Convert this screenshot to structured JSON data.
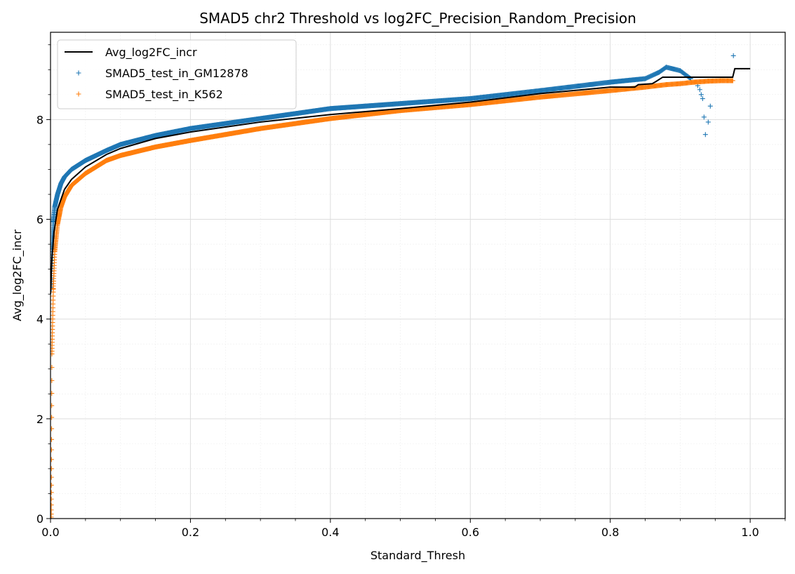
{
  "chart_data": {
    "type": "scatter",
    "title": "SMAD5 chr2 Threshold vs log2FC_Precision_Random_Precision",
    "xlabel": "Standard_Thresh",
    "ylabel": "Avg_log2FC_incr",
    "xlim": [
      0,
      1.05
    ],
    "ylim": [
      0,
      9.75
    ],
    "x_ticks": [
      0.0,
      0.2,
      0.4,
      0.6,
      0.8,
      1.0
    ],
    "x_tick_labels": [
      "0.0",
      "0.2",
      "0.4",
      "0.6",
      "0.8",
      "1.0"
    ],
    "y_ticks": [
      0,
      2,
      4,
      6,
      8
    ],
    "y_tick_labels": [
      "0",
      "2",
      "4",
      "6",
      "8"
    ],
    "grid": true,
    "minor_grid": true,
    "legend_position": "top-left",
    "series": [
      {
        "name": "Avg_log2FC_incr",
        "kind": "line",
        "color": "#000000",
        "x": [
          0.0,
          0.002,
          0.005,
          0.01,
          0.02,
          0.03,
          0.05,
          0.08,
          0.1,
          0.15,
          0.2,
          0.3,
          0.4,
          0.5,
          0.6,
          0.7,
          0.8,
          0.835,
          0.84,
          0.86,
          0.865,
          0.875,
          0.975,
          0.978,
          1.0
        ],
        "y": [
          4.5,
          5.2,
          5.75,
          6.2,
          6.6,
          6.8,
          7.05,
          7.3,
          7.42,
          7.62,
          7.75,
          7.95,
          8.1,
          8.22,
          8.35,
          8.52,
          8.65,
          8.65,
          8.7,
          8.72,
          8.76,
          8.85,
          8.85,
          9.02,
          9.02
        ]
      },
      {
        "name": "SMAD5_test_in_GM12878",
        "kind": "scatter",
        "marker": "+",
        "color": "#1f77b4",
        "x": [
          0.001,
          0.002,
          0.004,
          0.006,
          0.01,
          0.015,
          0.02,
          0.03,
          0.05,
          0.08,
          0.1,
          0.15,
          0.2,
          0.3,
          0.4,
          0.5,
          0.6,
          0.7,
          0.8,
          0.85,
          0.87,
          0.88,
          0.9,
          0.915,
          0.925,
          0.928,
          0.93,
          0.932,
          0.934,
          0.936,
          0.94,
          0.943,
          0.976
        ],
        "y": [
          4.6,
          5.4,
          5.95,
          6.25,
          6.5,
          6.72,
          6.85,
          7.0,
          7.18,
          7.38,
          7.5,
          7.68,
          7.82,
          8.02,
          8.22,
          8.32,
          8.42,
          8.58,
          8.75,
          8.82,
          8.95,
          9.05,
          8.98,
          8.82,
          8.68,
          8.6,
          8.5,
          8.42,
          8.05,
          7.7,
          7.95,
          8.27,
          9.28
        ]
      },
      {
        "name": "SMAD5_test_in_K562",
        "kind": "scatter",
        "marker": "+",
        "color": "#ff7f0e",
        "x": [
          0.001,
          0.002,
          0.004,
          0.006,
          0.01,
          0.015,
          0.02,
          0.03,
          0.05,
          0.08,
          0.1,
          0.15,
          0.2,
          0.3,
          0.4,
          0.5,
          0.6,
          0.7,
          0.8,
          0.85,
          0.88,
          0.9,
          0.92,
          0.94,
          0.96,
          0.975
        ],
        "y": [
          0.0,
          3.3,
          4.6,
          5.35,
          5.9,
          6.25,
          6.45,
          6.68,
          6.92,
          7.18,
          7.28,
          7.45,
          7.58,
          7.82,
          8.02,
          8.18,
          8.3,
          8.45,
          8.58,
          8.65,
          8.7,
          8.72,
          8.75,
          8.77,
          8.78,
          8.78
        ]
      }
    ]
  }
}
